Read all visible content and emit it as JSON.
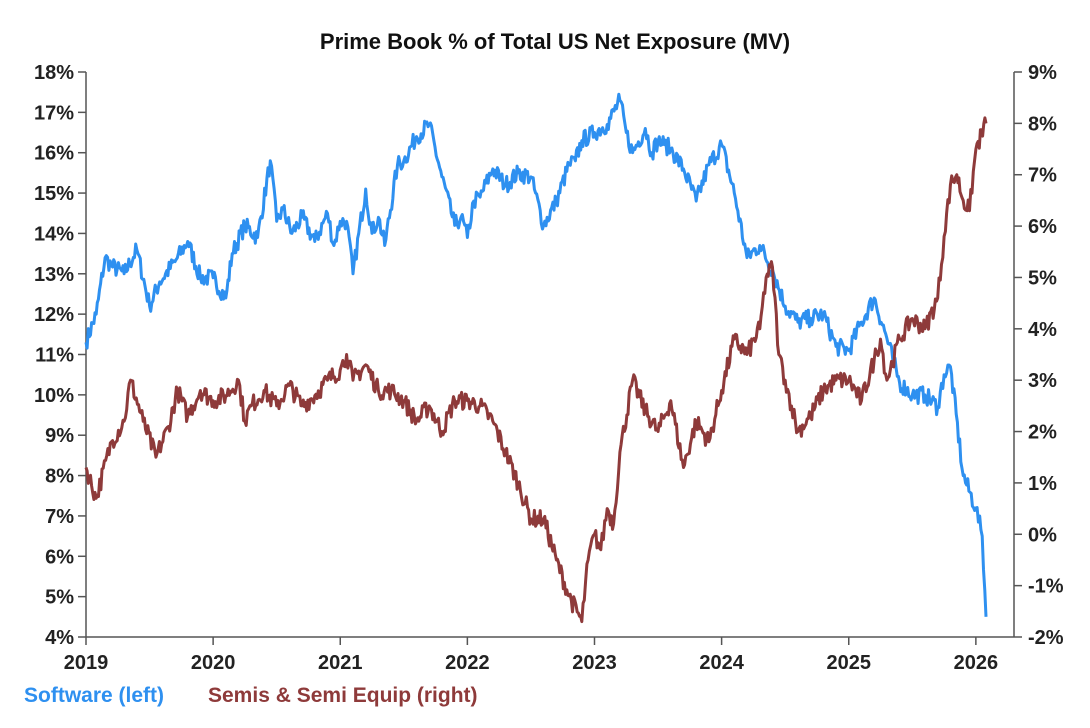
{
  "chart_data": {
    "type": "line",
    "title": "Prime Book % of Total US Net Exposure (MV)",
    "x_ticks": [
      "2019",
      "2020",
      "2021",
      "2022",
      "2023",
      "2024",
      "2025",
      "2026"
    ],
    "x_range": [
      2019.0,
      2026.3
    ],
    "y_left": {
      "min": 4,
      "max": 18,
      "ticks": [
        "18%",
        "17%",
        "16%",
        "15%",
        "14%",
        "13%",
        "12%",
        "11%",
        "10%",
        "9%",
        "8%",
        "7%",
        "6%",
        "5%",
        "4%"
      ]
    },
    "y_right": {
      "min": -2,
      "max": 9,
      "ticks": [
        "9%",
        "8%",
        "7%",
        "6%",
        "5%",
        "4%",
        "3%",
        "2%",
        "1%",
        "0%",
        "-1%",
        "-2%"
      ]
    },
    "series": [
      {
        "name": "Software (left)",
        "axis": "left",
        "color": "#2e90f0",
        "x": [
          2019.0,
          2019.08,
          2019.15,
          2019.2,
          2019.3,
          2019.4,
          2019.5,
          2019.58,
          2019.7,
          2019.8,
          2019.9,
          2020.0,
          2020.1,
          2020.15,
          2020.25,
          2020.35,
          2020.45,
          2020.5,
          2020.55,
          2020.62,
          2020.7,
          2020.8,
          2020.9,
          2020.95,
          2021.0,
          2021.05,
          2021.1,
          2021.2,
          2021.25,
          2021.3,
          2021.35,
          2021.45,
          2021.5,
          2021.6,
          2021.7,
          2021.8,
          2021.9,
          2021.95,
          2022.0,
          2022.05,
          2022.1,
          2022.2,
          2022.3,
          2022.4,
          2022.5,
          2022.6,
          2022.7,
          2022.8,
          2022.85,
          2022.9,
          2023.0,
          2023.1,
          2023.2,
          2023.25,
          2023.3,
          2023.4,
          2023.45,
          2023.5,
          2023.55,
          2023.6,
          2023.7,
          2023.8,
          2023.9,
          2024.0,
          2024.1,
          2024.2,
          2024.3,
          2024.4,
          2024.5,
          2024.6,
          2024.7,
          2024.8,
          2024.9,
          2025.0,
          2025.1,
          2025.2,
          2025.3,
          2025.4,
          2025.5,
          2025.6,
          2025.7,
          2025.75,
          2025.8,
          2025.9,
          2026.0,
          2026.05,
          2026.08
        ],
        "values": [
          11.3,
          12.0,
          13.4,
          13.2,
          13.0,
          13.6,
          12.2,
          12.8,
          13.3,
          13.8,
          12.9,
          12.9,
          12.4,
          13.5,
          14.2,
          13.9,
          15.8,
          14.3,
          14.6,
          14.0,
          14.4,
          13.8,
          14.5,
          13.7,
          14.3,
          14.3,
          13.0,
          15.1,
          14.0,
          14.4,
          13.7,
          15.7,
          15.8,
          16.4,
          16.7,
          15.4,
          14.2,
          14.4,
          13.9,
          14.8,
          14.9,
          15.6,
          15.2,
          15.5,
          15.4,
          14.2,
          14.8,
          15.7,
          15.8,
          16.3,
          16.5,
          16.7,
          17.3,
          16.5,
          16.0,
          16.6,
          16.0,
          16.3,
          16.2,
          16.1,
          15.6,
          14.8,
          15.7,
          16.2,
          15.0,
          13.4,
          13.7,
          13.1,
          12.2,
          11.8,
          11.9,
          12.0,
          11.2,
          11.1,
          11.8,
          12.4,
          11.4,
          10.3,
          10.0,
          10.0,
          9.7,
          10.5,
          10.7,
          8.0,
          7.2,
          6.5,
          4.5
        ]
      },
      {
        "name": "Semis & Semi Equip (right)",
        "axis": "right",
        "color": "#8e3a3a",
        "x": [
          2019.0,
          2019.08,
          2019.2,
          2019.3,
          2019.35,
          2019.45,
          2019.55,
          2019.65,
          2019.72,
          2019.8,
          2019.9,
          2020.0,
          2020.1,
          2020.2,
          2020.25,
          2020.3,
          2020.4,
          2020.5,
          2020.6,
          2020.7,
          2020.8,
          2020.9,
          2021.0,
          2021.05,
          2021.1,
          2021.2,
          2021.3,
          2021.4,
          2021.5,
          2021.6,
          2021.7,
          2021.8,
          2021.9,
          2022.0,
          2022.1,
          2022.2,
          2022.3,
          2022.4,
          2022.5,
          2022.6,
          2022.7,
          2022.8,
          2022.9,
          2022.95,
          2023.0,
          2023.05,
          2023.1,
          2023.15,
          2023.2,
          2023.3,
          2023.4,
          2023.5,
          2023.6,
          2023.7,
          2023.8,
          2023.9,
          2024.0,
          2024.1,
          2024.2,
          2024.3,
          2024.35,
          2024.4,
          2024.45,
          2024.5,
          2024.55,
          2024.6,
          2024.7,
          2024.8,
          2024.9,
          2025.0,
          2025.1,
          2025.2,
          2025.25,
          2025.3,
          2025.4,
          2025.5,
          2025.6,
          2025.7,
          2025.75,
          2025.8,
          2025.85,
          2025.9,
          2025.95,
          2026.0,
          2026.08
        ],
        "values": [
          1.3,
          0.7,
          1.8,
          2.2,
          3.0,
          2.2,
          1.5,
          2.1,
          2.8,
          2.3,
          2.8,
          2.6,
          2.7,
          3.0,
          2.2,
          2.5,
          2.8,
          2.5,
          2.9,
          2.5,
          2.7,
          3.0,
          3.2,
          3.5,
          3.0,
          3.3,
          2.8,
          2.8,
          2.6,
          2.2,
          2.5,
          2.0,
          2.6,
          2.6,
          2.5,
          2.2,
          1.6,
          1.0,
          0.3,
          0.3,
          -0.5,
          -1.2,
          -1.7,
          -0.5,
          0.0,
          -0.3,
          0.5,
          0.2,
          1.6,
          3.0,
          2.4,
          2.0,
          2.6,
          1.3,
          2.2,
          1.8,
          2.8,
          3.8,
          3.5,
          4.0,
          5.0,
          5.2,
          3.5,
          3.0,
          2.5,
          2.0,
          2.3,
          2.8,
          3.0,
          3.0,
          2.6,
          3.4,
          3.8,
          3.0,
          3.8,
          4.2,
          4.0,
          4.6,
          5.8,
          6.8,
          7.0,
          6.5,
          6.3,
          7.5,
          8.0
        ]
      }
    ]
  }
}
